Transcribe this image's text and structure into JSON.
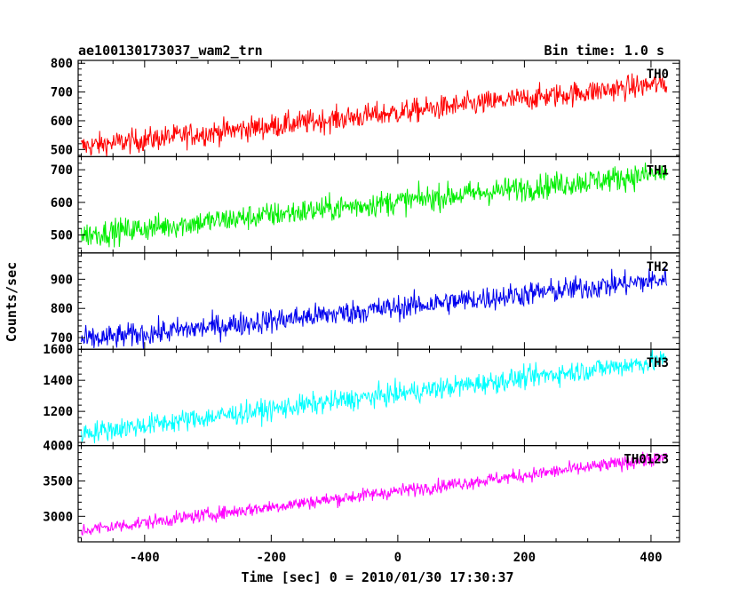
{
  "header": {
    "title": "ae100130173037_wam2_trn",
    "bin_time": "Bin time: 1.0 s"
  },
  "ylabel": "Counts/sec",
  "xlabel": "Time [sec] 0 = 2010/01/30 17:30:37",
  "chart_data": {
    "type": "line",
    "x": {
      "range": [
        -505,
        445
      ],
      "ticks": [
        -400,
        -200,
        0,
        200,
        400
      ],
      "start": -500,
      "end": 425,
      "step": 1
    },
    "panels": [
      {
        "name": "TH0",
        "color": "#ff0000",
        "ylim": [
          475,
          810
        ],
        "yticks": [
          500,
          600,
          700,
          800
        ],
        "trend": [
          510,
          730
        ],
        "noise": 30
      },
      {
        "name": "TH1",
        "color": "#00ee00",
        "ylim": [
          445,
          740
        ],
        "yticks": [
          500,
          600,
          700
        ],
        "trend": [
          500,
          690
        ],
        "noise": 28
      },
      {
        "name": "TH2",
        "color": "#0000ee",
        "ylim": [
          660,
          990
        ],
        "yticks": [
          700,
          800,
          900
        ],
        "trend": [
          690,
          900
        ],
        "noise": 30
      },
      {
        "name": "TH3",
        "color": "#00ffff",
        "ylim": [
          980,
          1600
        ],
        "yticks": [
          1200,
          1400,
          1600
        ],
        "trend": [
          1060,
          1530
        ],
        "noise": 50
      },
      {
        "name": "TH0123",
        "color": "#ff00ff",
        "ylim": [
          2640,
          4000
        ],
        "yticks": [
          3000,
          3500,
          4000
        ],
        "trend": [
          2800,
          3830
        ],
        "noise": 70
      }
    ]
  }
}
